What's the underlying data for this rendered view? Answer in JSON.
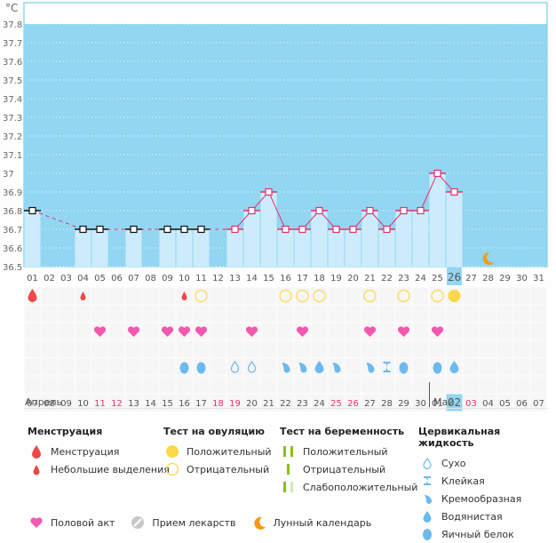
{
  "chart_data": {
    "type": "bar",
    "title": "",
    "ylabel": "°C",
    "ylim": [
      36.5,
      37.8
    ],
    "yticks": [
      "37.8",
      "37.7",
      "37.6",
      "37.5",
      "37.4",
      "37.3",
      "37.2",
      "37.1",
      "37",
      "36.9",
      "36.8",
      "36.7",
      "36.6",
      "36.5"
    ],
    "grid": true,
    "top_days": [
      "01",
      "02",
      "03",
      "04",
      "05",
      "06",
      "07",
      "08",
      "09",
      "10",
      "11",
      "12",
      "13",
      "14",
      "15",
      "16",
      "17",
      "18",
      "19",
      "20",
      "21",
      "22",
      "23",
      "24",
      "25",
      "26",
      "27",
      "28",
      "29",
      "30",
      "31"
    ],
    "current_day_index": 25,
    "temperatures": [
      36.8,
      null,
      null,
      36.7,
      36.7,
      null,
      36.7,
      null,
      36.7,
      36.7,
      36.7,
      null,
      36.7,
      36.8,
      36.9,
      36.7,
      36.7,
      36.8,
      36.7,
      36.7,
      36.8,
      36.7,
      36.8,
      36.8,
      37.0,
      36.9,
      null,
      null,
      null,
      null,
      null
    ],
    "marker_style": [
      "black",
      "",
      "",
      "black",
      "black",
      "",
      "black",
      "",
      "black",
      "black",
      "black",
      "",
      "red",
      "red",
      "red",
      "red",
      "red",
      "red",
      "red",
      "red",
      "red",
      "red",
      "red",
      "red",
      "red",
      "red",
      "",
      "",
      "",
      "",
      ""
    ],
    "moon_day_index": 27,
    "bottom_days": [
      "07",
      "08",
      "09",
      "10",
      "11",
      "12",
      "13",
      "14",
      "15",
      "16",
      "17",
      "18",
      "19",
      "20",
      "21",
      "22",
      "23",
      "24",
      "25",
      "26",
      "27",
      "28",
      "29",
      "30",
      "01",
      "02",
      "03",
      "04",
      "05",
      "06",
      "07"
    ],
    "bottom_red": [
      false,
      false,
      false,
      false,
      true,
      true,
      false,
      false,
      false,
      false,
      false,
      true,
      true,
      false,
      false,
      false,
      false,
      false,
      true,
      true,
      false,
      false,
      false,
      false,
      false,
      false,
      true,
      false,
      false,
      false,
      false
    ],
    "bottom_current_index": 25,
    "months": [
      {
        "label": "Апрель",
        "start_index": 0
      },
      {
        "label": "Май",
        "start_index": 24
      }
    ],
    "symptoms": {
      "menstruation": [
        {
          "day": 0,
          "type": "full"
        },
        {
          "day": 3,
          "type": "light"
        },
        {
          "day": 9,
          "type": "light"
        }
      ],
      "ovulation_test": [
        {
          "day": 10,
          "type": "negative"
        },
        {
          "day": 15,
          "type": "negative"
        },
        {
          "day": 16,
          "type": "negative"
        },
        {
          "day": 17,
          "type": "negative"
        },
        {
          "day": 20,
          "type": "negative"
        },
        {
          "day": 22,
          "type": "negative"
        },
        {
          "day": 24,
          "type": "negative"
        },
        {
          "day": 25,
          "type": "positive"
        }
      ],
      "intercourse": [
        4,
        6,
        8,
        9,
        10,
        13,
        16,
        20,
        22,
        24
      ],
      "cervical_fluid": [
        {
          "day": 9,
          "type": "egg_white"
        },
        {
          "day": 10,
          "type": "egg_white"
        },
        {
          "day": 12,
          "type": "dry"
        },
        {
          "day": 13,
          "type": "dry"
        },
        {
          "day": 15,
          "type": "creamy"
        },
        {
          "day": 16,
          "type": "creamy"
        },
        {
          "day": 17,
          "type": "watery"
        },
        {
          "day": 18,
          "type": "creamy"
        },
        {
          "day": 20,
          "type": "creamy"
        },
        {
          "day": 21,
          "type": "sticky"
        },
        {
          "day": 22,
          "type": "egg_white"
        },
        {
          "day": 24,
          "type": "egg_white"
        },
        {
          "day": 25,
          "type": "watery"
        }
      ]
    }
  },
  "colors": {
    "plot_bg": "#92d6f2",
    "bar": "#cdecfb",
    "line": "#e5306a",
    "menstruation": "#f04848",
    "heart": "#f357b0",
    "ovulation": "#fbd84a",
    "fluid": "#6cb9ec",
    "moon": "#f39a12",
    "pregnancy": "#8cbd1a",
    "pregnancy_light": "#d4e6b0",
    "pill": "#c8c8c8"
  },
  "legend": {
    "menstruation": {
      "title": "Менструация",
      "items": [
        "Менструация",
        "Небольшие выделения"
      ]
    },
    "ovulation": {
      "title": "Тест на овуляцию",
      "items": [
        "Положительный",
        "Отрицательный"
      ]
    },
    "pregnancy": {
      "title": "Тест на беременность",
      "items": [
        "Положительный",
        "Отрицательный",
        "Слабоположительный"
      ]
    },
    "fluid": {
      "title": "Цервикальная жидкость",
      "items": [
        "Сухо",
        "Клейкая",
        "Кремообразная",
        "Водянистая",
        "Яичный белок"
      ]
    },
    "other": [
      "Половой акт",
      "Прием лекарств",
      "Лунный календарь"
    ]
  }
}
